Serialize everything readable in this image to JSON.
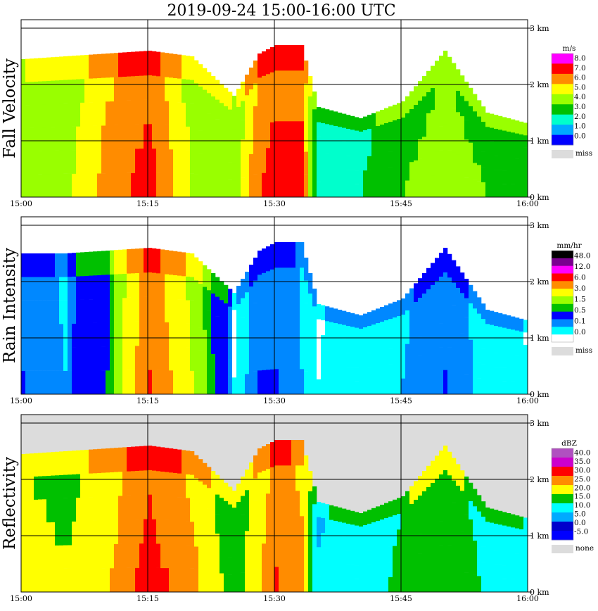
{
  "title": "2019-09-24   15:00-16:00 UTC",
  "x_ticks": [
    "15:00",
    "15:15",
    "15:30",
    "15:45",
    "16:00"
  ],
  "height_ticks": [
    "0 km",
    "1 km",
    "2 km",
    "3 km"
  ],
  "colors": {
    "background": "#ffffff",
    "missing": "#dcdcdc"
  },
  "chart_data": [
    {
      "type": "heatmap",
      "name": "fall-velocity",
      "ylabel": "Fall Velocity",
      "xlim": [
        "15:00",
        "16:00"
      ],
      "ylim_km": [
        0,
        3.0
      ],
      "grid": true,
      "legend_position": "right",
      "legend": {
        "unit": "m/s",
        "labels": [
          "8.0",
          "7.0",
          "6.0",
          "5.0",
          "4.0",
          "3.0",
          "2.0",
          "1.0",
          "0.0"
        ],
        "colors": [
          "#ff00ff",
          "#ff0000",
          "#ff8c00",
          "#ffff00",
          "#99ff00",
          "#00c000",
          "#00ffcc",
          "#00aaff",
          "#0000ff"
        ],
        "missing_label": "miss"
      },
      "echo_top_km": [
        {
          "t": "15:00",
          "top": 2.45,
          "v": 4.0
        },
        {
          "t": "15:05",
          "top": 2.5,
          "v": 4.2
        },
        {
          "t": "15:10",
          "top": 2.55,
          "v": 6.0
        },
        {
          "t": "15:15",
          "top": 2.6,
          "v": 7.0
        },
        {
          "t": "15:20",
          "top": 2.5,
          "v": 4.5
        },
        {
          "t": "15:25",
          "top": 1.8,
          "v": 4.0
        },
        {
          "t": "15:28",
          "top": 2.55,
          "v": 6.5
        },
        {
          "t": "15:30",
          "top": 2.7,
          "v": 7.0
        },
        {
          "t": "15:33",
          "top": 2.7,
          "v": 7.0
        },
        {
          "t": "15:35",
          "top": 1.6,
          "v": 2.0
        },
        {
          "t": "15:40",
          "top": 1.4,
          "v": 2.5
        },
        {
          "t": "15:45",
          "top": 1.7,
          "v": 3.5
        },
        {
          "t": "15:50",
          "top": 2.6,
          "v": 4.0
        },
        {
          "t": "15:55",
          "top": 1.5,
          "v": 3.5
        },
        {
          "t": "16:00",
          "top": 1.3,
          "v": 3.0
        }
      ]
    },
    {
      "type": "heatmap",
      "name": "rain-intensity",
      "ylabel": "Rain Intensity",
      "xlim": [
        "15:00",
        "16:00"
      ],
      "ylim_km": [
        0,
        3.0
      ],
      "grid": true,
      "legend_position": "right",
      "legend": {
        "unit": "mm/hr",
        "labels": [
          "48.0",
          "12.0",
          "6.0",
          "3.0",
          "1.5",
          "0.5",
          "0.1",
          "0.0"
        ],
        "colors": [
          "#000000",
          "#7a0090",
          "#ff00ff",
          "#ff0000",
          "#ff8c00",
          "#ffff00",
          "#99ff00",
          "#00c000",
          "#0000ff",
          "#0088ff",
          "#00ffff",
          "#ffffff"
        ],
        "missing_label": "miss"
      },
      "echo_top_km": [
        {
          "t": "15:00",
          "top": 2.5,
          "r": 0.5
        },
        {
          "t": "15:05",
          "top": 2.5,
          "r": 0.3
        },
        {
          "t": "15:10",
          "top": 2.55,
          "r": 1.5
        },
        {
          "t": "15:15",
          "top": 2.6,
          "r": 6.0
        },
        {
          "t": "15:20",
          "top": 2.5,
          "r": 3.0
        },
        {
          "t": "15:25",
          "top": 1.8,
          "r": 0.1
        },
        {
          "t": "15:28",
          "top": 2.55,
          "r": 0.5
        },
        {
          "t": "15:30",
          "top": 2.7,
          "r": 0.5
        },
        {
          "t": "15:33",
          "top": 2.7,
          "r": 0.3
        },
        {
          "t": "15:35",
          "top": 1.6,
          "r": 0.1
        },
        {
          "t": "15:40",
          "top": 1.4,
          "r": 0.2
        },
        {
          "t": "15:45",
          "top": 1.7,
          "r": 0.3
        },
        {
          "t": "15:50",
          "top": 2.6,
          "r": 0.5
        },
        {
          "t": "15:55",
          "top": 1.5,
          "r": 0.2
        },
        {
          "t": "16:00",
          "top": 1.3,
          "r": 0.1
        }
      ]
    },
    {
      "type": "heatmap",
      "name": "reflectivity",
      "ylabel": "Reflectivity",
      "xlim": [
        "15:00",
        "16:00"
      ],
      "ylim_km": [
        0,
        3.0
      ],
      "grid": true,
      "legend_position": "right",
      "legend": {
        "unit": "dBZ",
        "labels": [
          "40.0",
          "35.0",
          "30.0",
          "25.0",
          "20.0",
          "15.0",
          "10.0",
          "5.0",
          "0.0",
          "-5.0"
        ],
        "colors": [
          "#b050c0",
          "#cc00cc",
          "#ff0000",
          "#ff8c00",
          "#ffff00",
          "#00c000",
          "#00ffff",
          "#00aaff",
          "#0000cc",
          "#0000ff"
        ],
        "missing_label": "none"
      },
      "echo_top_km": [
        {
          "t": "15:00",
          "top": 2.45,
          "z": 20
        },
        {
          "t": "15:05",
          "top": 2.5,
          "z": 18
        },
        {
          "t": "15:10",
          "top": 2.55,
          "z": 22
        },
        {
          "t": "15:15",
          "top": 2.6,
          "z": 30
        },
        {
          "t": "15:20",
          "top": 2.5,
          "z": 24
        },
        {
          "t": "15:25",
          "top": 1.8,
          "z": 15
        },
        {
          "t": "15:28",
          "top": 2.55,
          "z": 22
        },
        {
          "t": "15:30",
          "top": 2.7,
          "z": 28
        },
        {
          "t": "15:33",
          "top": 2.7,
          "z": 24
        },
        {
          "t": "15:35",
          "top": 1.6,
          "z": 8
        },
        {
          "t": "15:40",
          "top": 1.4,
          "z": 10
        },
        {
          "t": "15:45",
          "top": 1.7,
          "z": 14
        },
        {
          "t": "15:50",
          "top": 2.6,
          "z": 16
        },
        {
          "t": "15:55",
          "top": 1.5,
          "z": 12
        },
        {
          "t": "16:00",
          "top": 1.3,
          "z": 8
        }
      ]
    }
  ]
}
